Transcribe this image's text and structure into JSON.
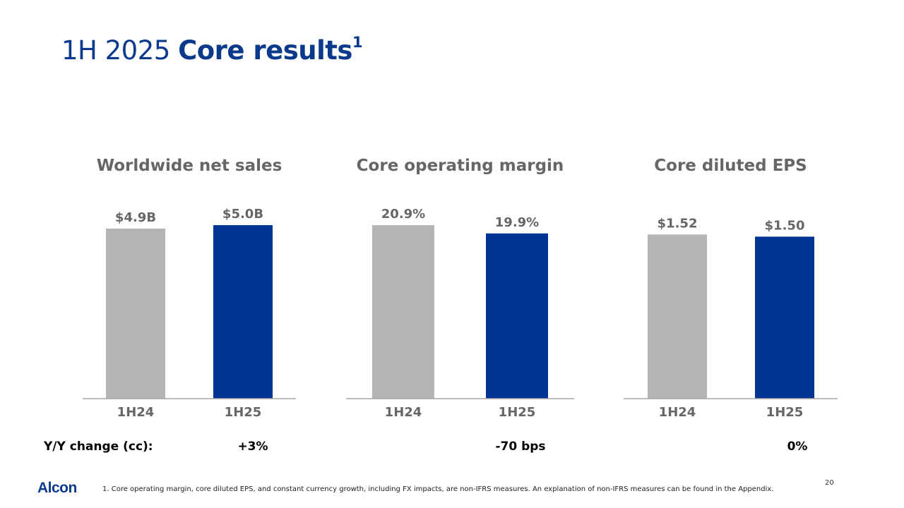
{
  "title": {
    "light": "1H 2025 ",
    "bold": "Core results",
    "sup": "1"
  },
  "chart_data": [
    {
      "type": "bar",
      "title": "Worldwide net sales",
      "categories": [
        "1H24",
        "1H25"
      ],
      "values": [
        4.9,
        5.0
      ],
      "labels": [
        "$4.9B",
        "$5.0B"
      ],
      "colors": [
        "#b5b5b5",
        "#003594"
      ],
      "ylim": [
        0,
        6.1
      ],
      "yoy": "+3%"
    },
    {
      "type": "bar",
      "title": "Core operating margin",
      "categories": [
        "1H24",
        "1H25"
      ],
      "values": [
        20.9,
        19.9
      ],
      "labels": [
        "20.9%",
        "19.9%"
      ],
      "colors": [
        "#b5b5b5",
        "#003594"
      ],
      "ylim": [
        0,
        25.5
      ],
      "yoy": "-70 bps"
    },
    {
      "type": "bar",
      "title": "Core diluted EPS",
      "categories": [
        "1H24",
        "1H25"
      ],
      "values": [
        1.52,
        1.5
      ],
      "labels": [
        "$1.52",
        "$1.50"
      ],
      "colors": [
        "#b5b5b5",
        "#003594"
      ],
      "ylim": [
        0,
        1.96
      ],
      "yoy": "0%"
    }
  ],
  "yoy_label": "Y/Y change (cc):",
  "logo": "Alcon",
  "footnote": "1.   Core operating margin, core diluted EPS, and constant currency growth, including FX impacts, are non-IFRS measures.  An explanation of non-IFRS measures can be found in the Appendix.",
  "page_number": "20"
}
